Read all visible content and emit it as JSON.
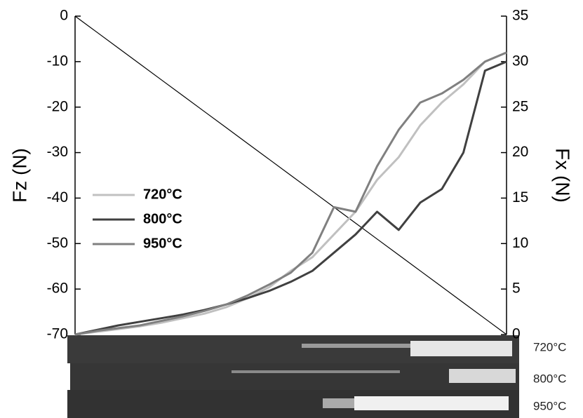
{
  "chart_data": {
    "type": "line",
    "y_label": "Fz (N)",
    "y2_label": "Fx (N)",
    "ylim": [
      -70,
      0
    ],
    "yticks": [
      -70,
      -60,
      -50,
      -40,
      -30,
      -20,
      -10,
      0
    ],
    "y2lim": [
      0,
      35
    ],
    "y2ticks": [
      0,
      5,
      10,
      15,
      20,
      25,
      30,
      35
    ],
    "legend_position": "center-left",
    "series": [
      {
        "color": "#000000",
        "axis": "y",
        "values": [
          0,
          -3.5,
          -7,
          -10.5,
          -14,
          -17.5,
          -21,
          -24.5,
          -28,
          -31.5,
          -35,
          -38.5,
          -42,
          -45.5,
          -49,
          -52.5,
          -56,
          -59.5,
          -63,
          -66.5,
          -70
        ]
      },
      {
        "name": "720°C",
        "color": "#c0c0c0",
        "axis": "y2",
        "values": [
          0,
          0.3,
          0.6,
          0.9,
          1.3,
          1.8,
          2.3,
          3,
          4,
          5.2,
          7,
          8.5,
          11,
          13.5,
          17,
          19.5,
          23,
          25.5,
          27.5,
          30,
          31
        ]
      },
      {
        "name": "800°C",
        "color": "#404040",
        "axis": "y2",
        "values": [
          0,
          0.5,
          1,
          1.4,
          1.8,
          2.2,
          2.7,
          3.3,
          4,
          4.8,
          5.8,
          7,
          9,
          11,
          13.5,
          11.5,
          14.5,
          16,
          20,
          29,
          30
        ]
      },
      {
        "name": "950°C",
        "color": "#808080",
        "axis": "y2",
        "values": [
          0,
          0.4,
          0.7,
          1,
          1.5,
          2,
          2.6,
          3.3,
          4.3,
          5.5,
          6.8,
          9,
          14,
          13.5,
          18.5,
          22.5,
          25.5,
          26.5,
          28,
          30,
          31
        ]
      }
    ]
  },
  "track_images": {
    "labels": [
      "720°C",
      "800°C",
      "950°C"
    ]
  }
}
